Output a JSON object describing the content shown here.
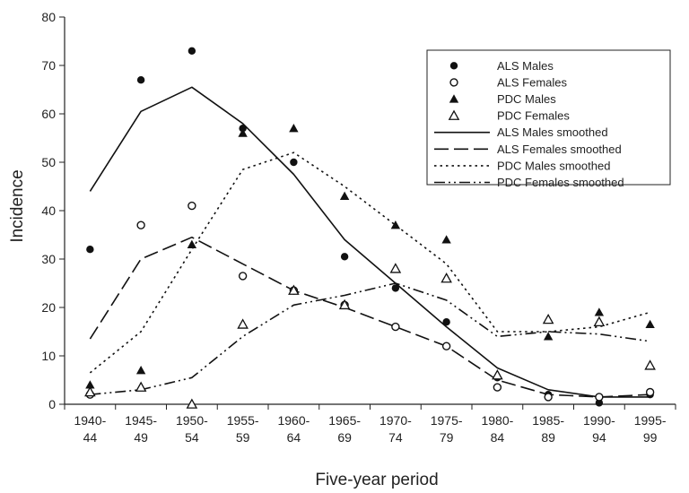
{
  "chart_data": {
    "type": "line",
    "xlabel": "Five-year period",
    "ylabel": "Incidence",
    "ylim": [
      0,
      80
    ],
    "yticks": [
      0,
      10,
      20,
      30,
      40,
      50,
      60,
      70,
      80
    ],
    "categories": [
      [
        "1940-",
        "44"
      ],
      [
        "1945-",
        "49"
      ],
      [
        "1950-",
        "54"
      ],
      [
        "1955-",
        "59"
      ],
      [
        "1960-",
        "64"
      ],
      [
        "1965-",
        "69"
      ],
      [
        "1970-",
        "74"
      ],
      [
        "1975-",
        "79"
      ],
      [
        "1980-",
        "84"
      ],
      [
        "1985-",
        "89"
      ],
      [
        "1990-",
        "94"
      ],
      [
        "1995-",
        "99"
      ]
    ],
    "legend_position": "top-right",
    "grid": false,
    "series": [
      {
        "name": "ALS Males",
        "kind": "points",
        "marker": "filled-circle",
        "values": [
          32,
          67,
          73,
          57,
          50,
          30.5,
          24,
          17,
          5.5,
          2,
          0.3,
          2
        ]
      },
      {
        "name": "ALS Females",
        "kind": "points",
        "marker": "open-circle",
        "values": [
          2,
          37,
          41,
          26.5,
          23.5,
          20.5,
          16,
          12,
          3.5,
          1.5,
          1.5,
          2.5
        ]
      },
      {
        "name": "PDC Males",
        "kind": "points",
        "marker": "filled-triangle",
        "values": [
          4,
          7,
          33,
          56,
          57,
          43,
          37,
          34,
          6,
          14,
          19,
          16.5
        ]
      },
      {
        "name": "PDC Females",
        "kind": "points",
        "marker": "open-triangle",
        "values": [
          2.5,
          3.5,
          0,
          16.5,
          23.5,
          20.5,
          28,
          26,
          6,
          17.5,
          17,
          8
        ]
      },
      {
        "name": "ALS Males smoothed",
        "kind": "line",
        "dash": "solid",
        "values": [
          44,
          60.5,
          65.5,
          58,
          47.5,
          34,
          25,
          16,
          7.5,
          3,
          1.5,
          1.5
        ]
      },
      {
        "name": "ALS Females smoothed",
        "kind": "line",
        "dash": "dashed",
        "values": [
          13.5,
          30,
          34.5,
          29,
          23.5,
          20,
          16,
          12,
          5,
          2,
          1.5,
          2
        ]
      },
      {
        "name": "PDC Males smoothed",
        "kind": "line",
        "dash": "dotted",
        "values": [
          6.5,
          15,
          32,
          48.5,
          52,
          45,
          37,
          29,
          15,
          15,
          16,
          19
        ]
      },
      {
        "name": "PDC Females smoothed",
        "kind": "line",
        "dash": "dash-dot-dot",
        "values": [
          2,
          3,
          5.5,
          14,
          20.5,
          22.5,
          25,
          21.5,
          14,
          15,
          14.5,
          13
        ]
      }
    ]
  }
}
